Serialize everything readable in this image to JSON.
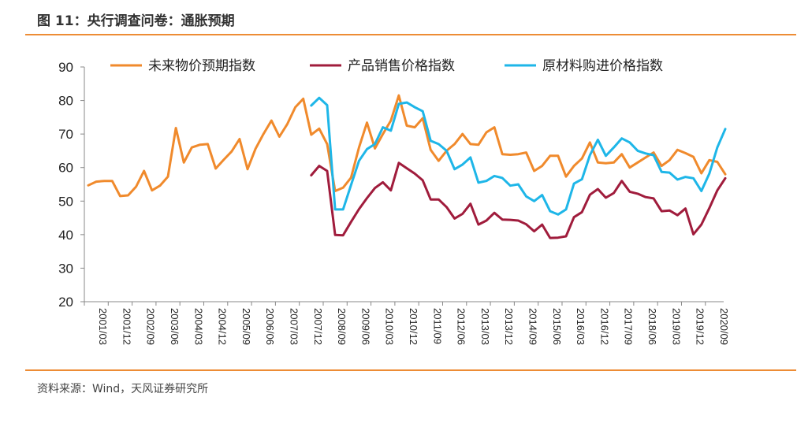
{
  "header": {
    "title": "图 11：央行调查问卷：通胀预期"
  },
  "footer": {
    "source": "资料来源：Wind，天风证券研究所"
  },
  "colors": {
    "accent": "#ED8C35",
    "orange": "#F08A2C",
    "maroon": "#A01C3C",
    "cyan": "#1EB6E8"
  },
  "chart_data": {
    "type": "line",
    "title": "",
    "xlabel": "",
    "ylabel": "",
    "ylim": [
      20,
      90
    ],
    "yticks": [
      20,
      30,
      40,
      50,
      60,
      70,
      80,
      90
    ],
    "grid": false,
    "legend_position": "top",
    "x_tick_labels": [
      "2001/03",
      "2001/12",
      "2002/09",
      "2003/06",
      "2004/03",
      "2004/12",
      "2005/09",
      "2006/06",
      "2007/03",
      "2007/12",
      "2008/09",
      "2009/06",
      "2010/03",
      "2010/12",
      "2011/09",
      "2012/06",
      "2013/03",
      "2013/12",
      "2014/09",
      "2015/06",
      "2016/03",
      "2016/12",
      "2017/09",
      "2018/06",
      "2019/03",
      "2019/12",
      "2020/09"
    ],
    "x_start": "2001/03",
    "x_step": "quarter",
    "series": [
      {
        "name": "未来物价预期指数",
        "color": "#F08A2C",
        "start": "2001/03",
        "values": [
          54.7,
          55.8,
          56.0,
          56.0,
          51.5,
          51.7,
          54.3,
          59.0,
          53.2,
          54.6,
          57.3,
          71.8,
          61.5,
          66.0,
          66.8,
          67.0,
          59.7,
          62.3,
          64.8,
          68.5,
          59.5,
          65.6,
          70.0,
          74.0,
          69.2,
          73.0,
          78.0,
          80.5,
          69.8,
          71.6,
          67.0,
          53.0,
          54.0,
          57.0,
          66.0,
          73.4,
          65.7,
          70.0,
          74.0,
          81.5,
          72.5,
          72.0,
          74.7,
          65.3,
          62.0,
          65.0,
          67.0,
          70.0,
          67.0,
          66.8,
          70.5,
          72.0,
          64.0,
          63.8,
          64.0,
          64.5,
          59.0,
          60.5,
          63.5,
          63.5,
          57.3,
          60.5,
          62.7,
          67.5,
          61.5,
          61.3,
          61.5,
          64.0,
          60.0,
          61.5,
          63.0,
          64.5,
          60.5,
          62.2,
          65.3,
          64.3,
          63.2,
          58.3,
          62.2,
          61.7,
          58.0
        ]
      },
      {
        "name": "产品销售价格指数",
        "color": "#A01C3C",
        "start": "2008/03",
        "values": [
          57.7,
          60.5,
          59.0,
          39.9,
          39.8,
          43.8,
          47.6,
          50.9,
          53.9,
          55.6,
          53.2,
          61.4,
          59.8,
          58.2,
          56.2,
          50.5,
          50.5,
          48.2,
          44.8,
          46.2,
          49.2,
          43.0,
          44.2,
          46.5,
          44.5,
          44.4,
          44.2,
          43.1,
          41.0,
          43.0,
          39.0,
          39.1,
          39.5,
          45.2,
          46.7,
          51.9,
          53.6,
          51.0,
          52.4,
          56.0,
          52.8,
          52.2,
          51.2,
          50.8,
          47.0,
          47.2,
          45.8,
          47.8,
          40.1,
          43.0,
          47.9,
          53.2,
          56.8
        ]
      },
      {
        "name": "原材料购进价格指数",
        "color": "#1EB6E8",
        "start": "2008/03",
        "values": [
          78.5,
          80.8,
          78.6,
          47.5,
          47.5,
          54.8,
          62.0,
          65.5,
          67.0,
          72.0,
          71.0,
          79.0,
          79.4,
          78.0,
          76.8,
          68.0,
          67.0,
          65.0,
          59.5,
          60.9,
          63.0,
          55.5,
          56.0,
          57.5,
          56.9,
          54.6,
          55.0,
          51.4,
          50.0,
          51.8,
          47.0,
          46.0,
          47.5,
          55.2,
          56.5,
          63.7,
          68.3,
          63.5,
          66.0,
          68.7,
          67.5,
          65.0,
          64.2,
          63.7,
          58.7,
          58.5,
          56.4,
          57.2,
          56.8,
          53.0,
          58.2,
          66.0,
          71.5
        ]
      }
    ]
  }
}
